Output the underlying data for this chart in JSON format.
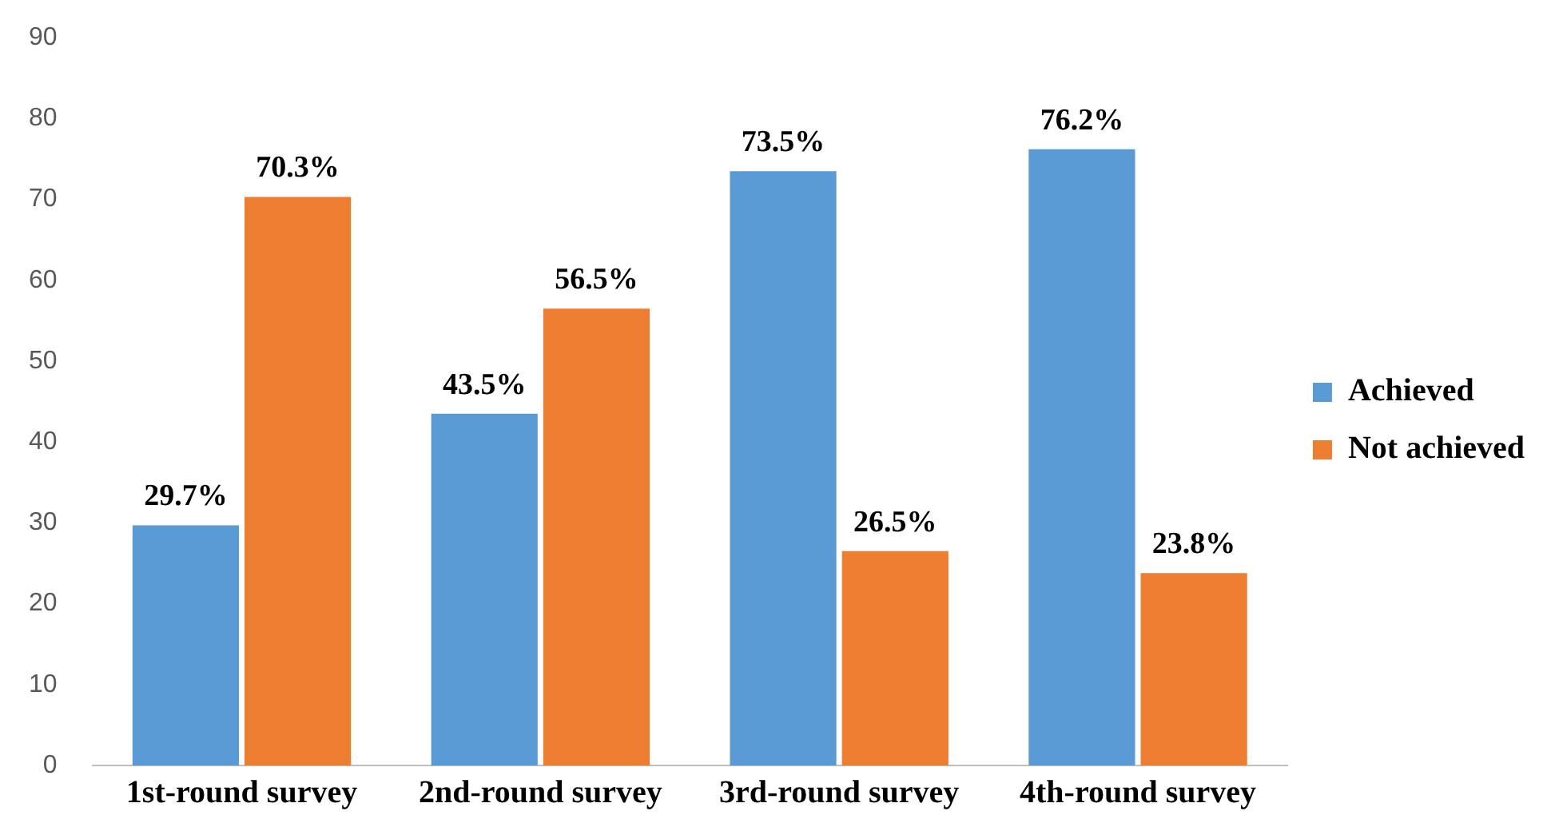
{
  "chart_data": {
    "type": "bar",
    "categories": [
      "1st-round survey",
      "2nd-round survey",
      "3rd-round survey",
      "4th-round survey"
    ],
    "series": [
      {
        "name": "Achieved",
        "color": "#5b9bd5",
        "values": [
          29.7,
          43.5,
          73.5,
          76.2
        ],
        "value_labels": [
          "29.7%",
          "43.5%",
          "73.5%",
          "76.2%"
        ]
      },
      {
        "name": "Not achieved",
        "color": "#ed7d31",
        "values": [
          70.3,
          56.5,
          26.5,
          23.8
        ],
        "value_labels": [
          "70.3%",
          "56.5%",
          "26.5%",
          "23.8%"
        ]
      }
    ],
    "ylim": [
      0,
      90
    ],
    "yticks": [
      0,
      10,
      20,
      30,
      40,
      50,
      60,
      70,
      80,
      90
    ],
    "grid": false,
    "legend": "right"
  }
}
